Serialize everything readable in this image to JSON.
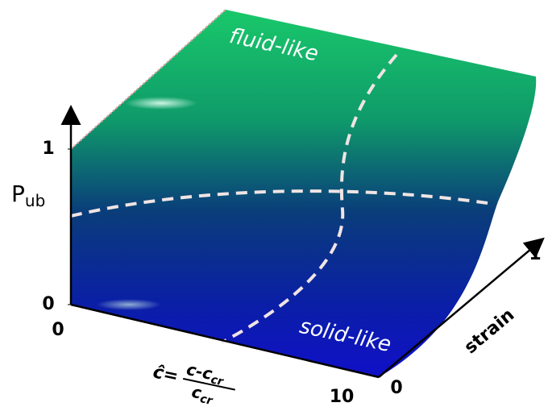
{
  "chart_data": {
    "type": "surface",
    "z_label": {
      "base": "P",
      "sub": "ub"
    },
    "x_label": {
      "lhs": "ĉ=",
      "numerator": "c-c",
      "numerator_sub": "cr",
      "denominator": "c",
      "denominator_sub": "cr"
    },
    "y_label": "strain",
    "xlim": [
      0,
      10
    ],
    "xticks": [
      0,
      10
    ],
    "ylim": [
      0,
      1
    ],
    "yticks": [
      0,
      1
    ],
    "zlim": [
      0,
      1
    ],
    "zticks": [
      0,
      1
    ],
    "annotations": [
      "fluid-like",
      "solid-like"
    ]
  }
}
